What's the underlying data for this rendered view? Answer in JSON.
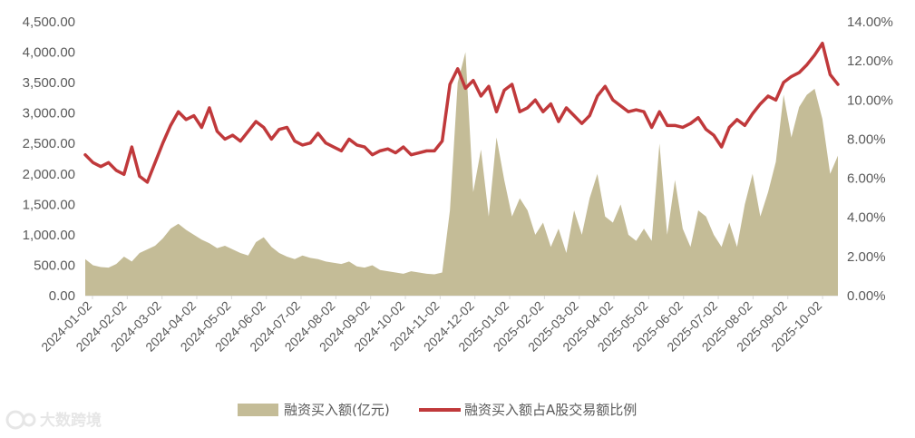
{
  "chart_data": {
    "type": "area+line",
    "x_labels": [
      "2024-01-02",
      "2024-02-02",
      "2024-03-02",
      "2024-04-02",
      "2024-05-02",
      "2024-06-02",
      "2024-07-02",
      "2024-08-02",
      "2024-09-02",
      "2024-10-02",
      "2024-11-02",
      "2024-12-02",
      "2025-01-02",
      "2025-02-02",
      "2025-03-02",
      "2025-04-02",
      "2025-05-02",
      "2025-06-02",
      "2025-07-02",
      "2025-08-02",
      "2025-09-02",
      "2025-10-02"
    ],
    "y_left_ticks": [
      "0.00",
      "500.00",
      "1,000.00",
      "1,500.00",
      "2,000.00",
      "2,500.00",
      "3,000.00",
      "3,500.00",
      "4,000.00",
      "4,500.00"
    ],
    "y_right_ticks": [
      "0.00%",
      "2.00%",
      "4.00%",
      "6.00%",
      "8.00%",
      "10.00%",
      "12.00%",
      "14.00%"
    ],
    "ylim_left": [
      0,
      4500
    ],
    "ylim_right": [
      0,
      14
    ],
    "series": [
      {
        "name": "融资买入额(亿元)",
        "kind": "area",
        "axis": "left",
        "color": "#c4bc97",
        "values": [
          600,
          500,
          470,
          460,
          520,
          640,
          560,
          700,
          760,
          820,
          940,
          1100,
          1180,
          1080,
          1000,
          920,
          860,
          780,
          820,
          760,
          700,
          660,
          880,
          960,
          800,
          700,
          640,
          600,
          660,
          620,
          600,
          560,
          540,
          520,
          560,
          480,
          460,
          500,
          420,
          400,
          380,
          360,
          400,
          380,
          360,
          350,
          380,
          1400,
          3500,
          4000,
          1700,
          2400,
          1300,
          2600,
          1900,
          1300,
          1600,
          1400,
          1000,
          1200,
          800,
          1100,
          700,
          1400,
          1000,
          1600,
          2000,
          1300,
          1200,
          1500,
          1000,
          900,
          1100,
          900,
          2500,
          1000,
          1900,
          1100,
          800,
          1400,
          1300,
          1000,
          800,
          1200,
          800,
          1500,
          2000,
          1300,
          1700,
          2200,
          3300,
          2600,
          3100,
          3300,
          3400,
          2900,
          2000,
          2300
        ]
      },
      {
        "name": "融资买入额占A股交易额比例",
        "kind": "line",
        "axis": "right",
        "color": "#c0393b",
        "values": [
          7.2,
          6.8,
          6.6,
          6.8,
          6.4,
          6.2,
          7.6,
          6.1,
          5.8,
          6.8,
          7.8,
          8.7,
          9.4,
          9.0,
          9.2,
          8.6,
          9.6,
          8.4,
          8.0,
          8.2,
          7.9,
          8.4,
          8.9,
          8.6,
          8.0,
          8.5,
          8.6,
          7.9,
          7.7,
          7.8,
          8.3,
          7.8,
          7.6,
          7.4,
          8.0,
          7.7,
          7.6,
          7.2,
          7.4,
          7.5,
          7.3,
          7.6,
          7.2,
          7.3,
          7.4,
          7.4,
          7.9,
          10.8,
          11.6,
          10.6,
          11.0,
          10.2,
          10.7,
          9.4,
          10.5,
          10.8,
          9.4,
          9.6,
          10.0,
          9.4,
          9.8,
          8.9,
          9.6,
          9.2,
          8.8,
          9.2,
          10.2,
          10.7,
          10.0,
          9.7,
          9.4,
          9.5,
          9.4,
          8.6,
          9.4,
          8.7,
          8.7,
          8.6,
          8.8,
          9.1,
          8.5,
          8.2,
          7.6,
          8.6,
          9.0,
          8.7,
          9.3,
          9.8,
          10.2,
          10.0,
          10.9,
          11.2,
          11.4,
          11.8,
          12.3,
          12.9,
          11.3,
          10.8
        ]
      }
    ]
  },
  "legend": {
    "area_label": "融资买入额(亿元)",
    "line_label": "融资买入额占A股交易额比例"
  },
  "watermark": {
    "text": "大数跨境"
  }
}
